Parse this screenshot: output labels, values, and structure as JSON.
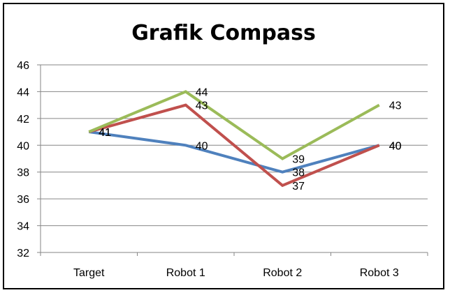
{
  "chart_data": {
    "type": "line",
    "title": "Grafik Compass",
    "xlabel": "",
    "ylabel": "",
    "categories": [
      "Target",
      "Robot 1",
      "Robot 2",
      "Robot 3"
    ],
    "ylim": [
      32,
      46
    ],
    "yticks": [
      32,
      34,
      36,
      38,
      40,
      42,
      44,
      46
    ],
    "grid": true,
    "legend": "none",
    "series": [
      {
        "color": "#4f81bd",
        "values": [
          41,
          40,
          38,
          40
        ]
      },
      {
        "color": "#c0504d",
        "values": [
          41,
          43,
          37,
          40
        ]
      },
      {
        "color": "#9bbb59",
        "values": [
          41,
          44,
          39,
          43
        ]
      }
    ]
  }
}
